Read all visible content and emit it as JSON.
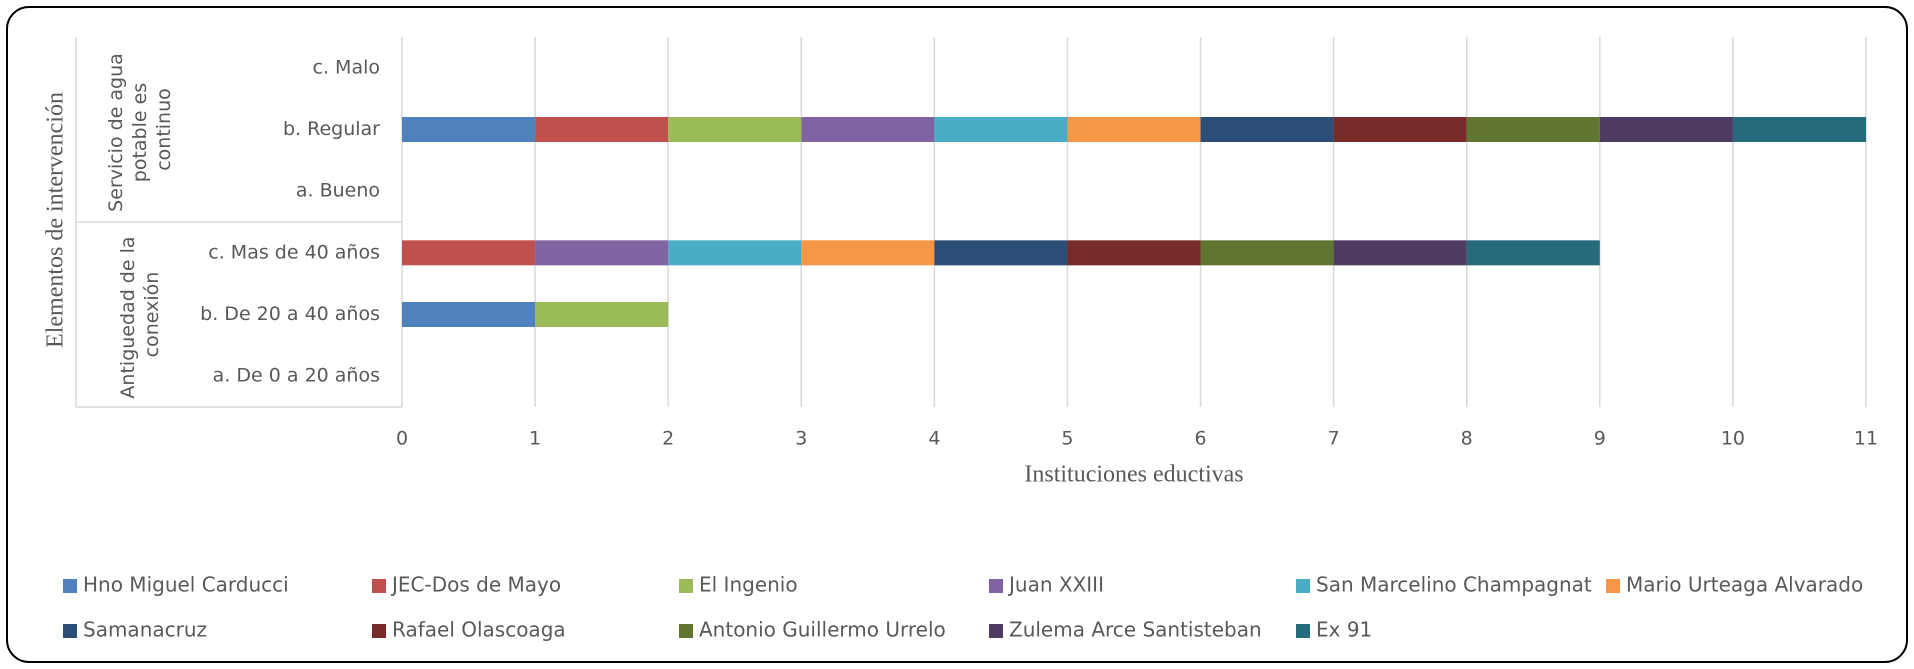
{
  "chart_data": {
    "type": "stacked_barh",
    "ylabel": "Elementos de intervención",
    "xlabel": "Instituciones eductivas",
    "category_groups": [
      {
        "name": "Antiguedad de la conexión",
        "categories": [
          "a. De 0 a 20 años",
          "b. De 20  a 40 años",
          "c. Mas de 40 años"
        ]
      },
      {
        "name": "Servicio de agua potable es continuo",
        "categories": [
          "a. Bueno",
          "b. Regular",
          "c. Malo"
        ]
      }
    ],
    "series": [
      {
        "name": "Hno Miguel Carducci",
        "color": "#4f81bd",
        "values": [
          0,
          1,
          0,
          0,
          1,
          0
        ]
      },
      {
        "name": "JEC-Dos de Mayo",
        "color": "#c0504d",
        "values": [
          0,
          0,
          1,
          0,
          1,
          0
        ]
      },
      {
        "name": "El Ingenio",
        "color": "#9bbb59",
        "values": [
          0,
          1,
          0,
          0,
          1,
          0
        ]
      },
      {
        "name": "Juan XXIII",
        "color": "#8064a2",
        "values": [
          0,
          0,
          1,
          0,
          1,
          0
        ]
      },
      {
        "name": "San Marcelino Champagnat",
        "color": "#4bacc6",
        "values": [
          0,
          0,
          1,
          0,
          1,
          0
        ]
      },
      {
        "name": "Mario Urteaga Alvarado",
        "color": "#f79646",
        "values": [
          0,
          0,
          1,
          0,
          1,
          0
        ]
      },
      {
        "name": "Samanacruz",
        "color": "#2c4d75",
        "values": [
          0,
          0,
          1,
          0,
          1,
          0
        ]
      },
      {
        "name": "Rafael Olascoaga",
        "color": "#772c2a",
        "values": [
          0,
          0,
          1,
          0,
          1,
          0
        ]
      },
      {
        "name": "Antonio Guillermo Urrelo",
        "color": "#5f7530",
        "values": [
          0,
          0,
          1,
          0,
          1,
          0
        ]
      },
      {
        "name": "Zulema Arce Santisteban",
        "color": "#4d3b62",
        "values": [
          0,
          0,
          1,
          0,
          1,
          0
        ]
      },
      {
        "name": "Ex 91",
        "color": "#276a7c",
        "values": [
          0,
          0,
          1,
          0,
          1,
          0
        ]
      }
    ],
    "xlim": [
      0,
      11
    ],
    "xticks": [
      0,
      1,
      2,
      3,
      4,
      5,
      6,
      7,
      8,
      9,
      10,
      11
    ],
    "grid": true,
    "legend": "bottom"
  }
}
